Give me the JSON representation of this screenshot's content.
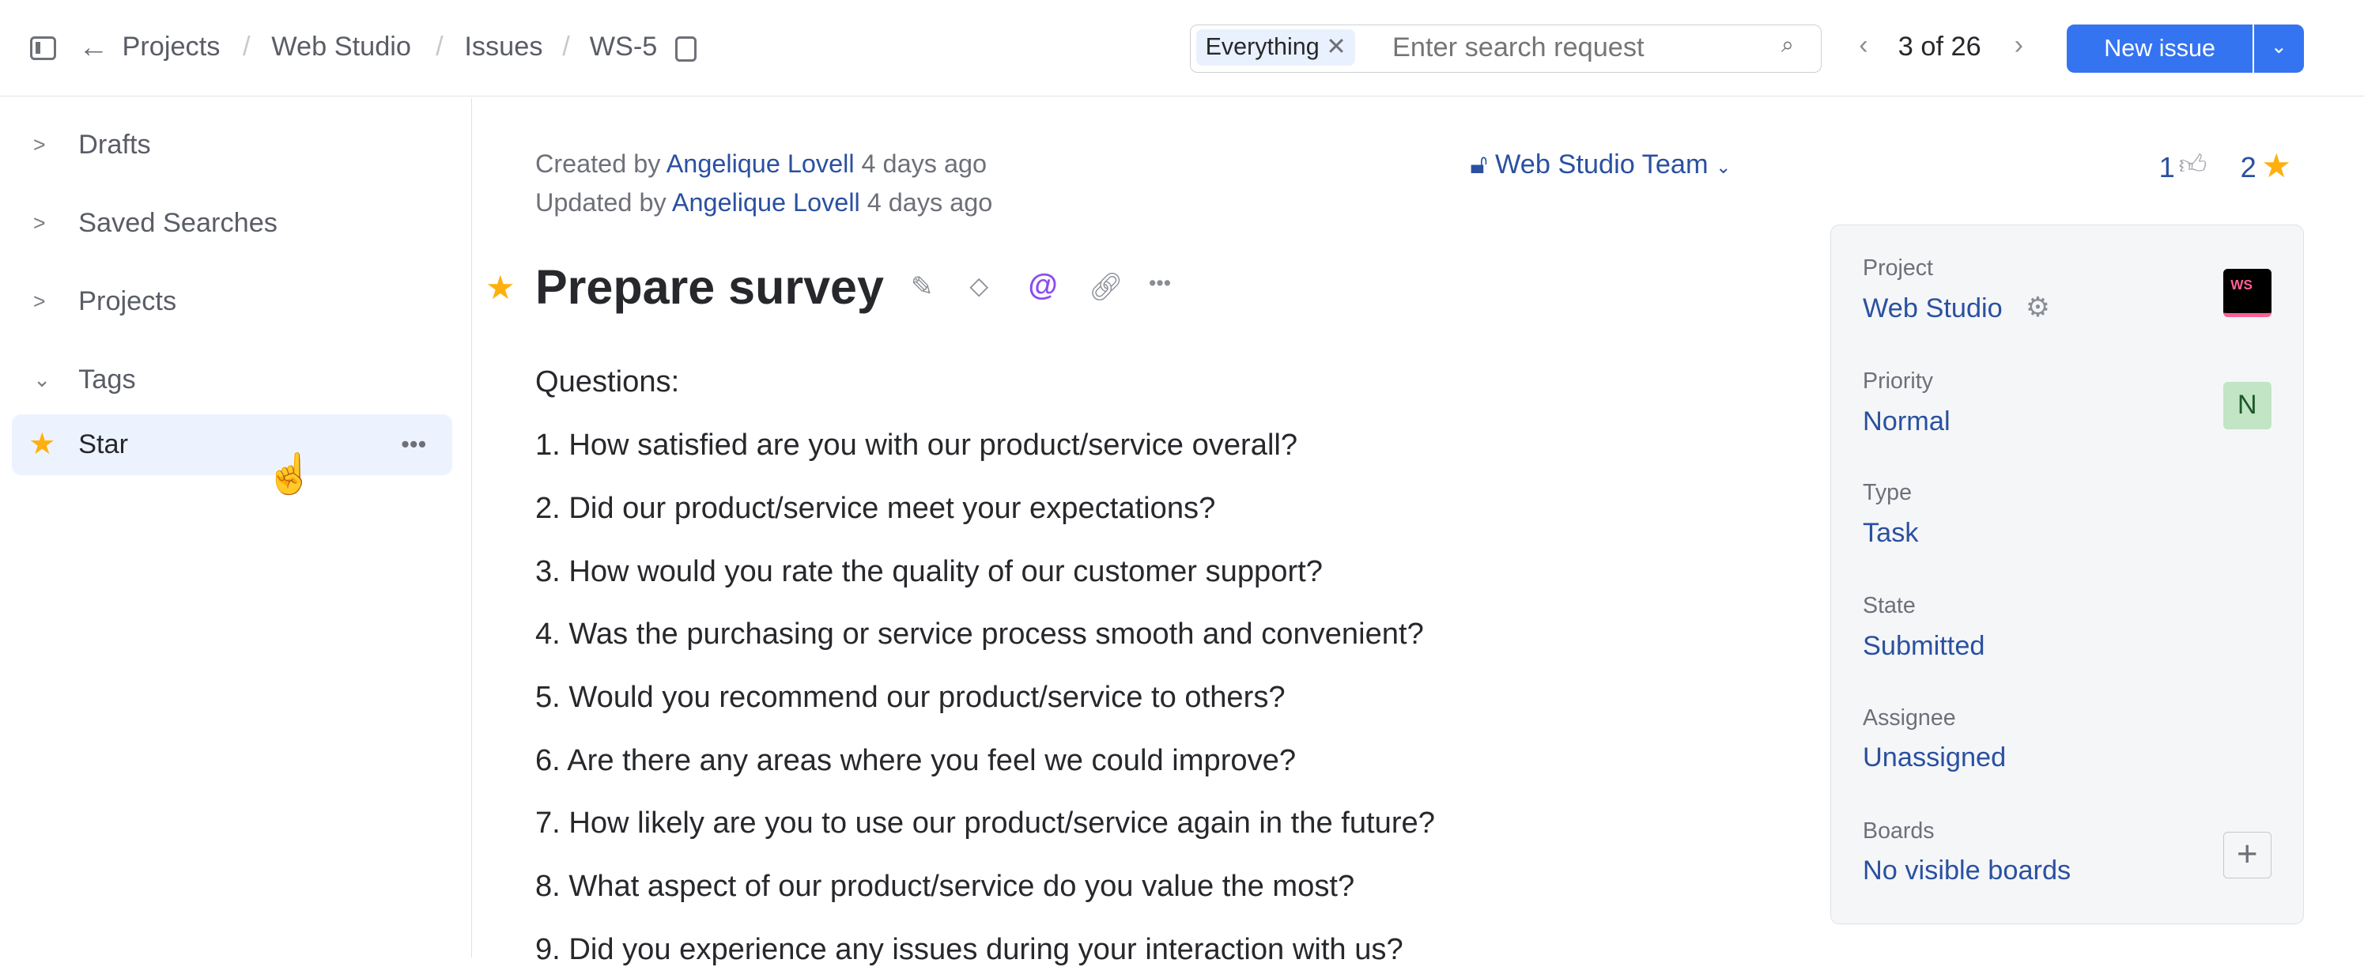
{
  "header": {
    "breadcrumb": [
      "Projects",
      "Web Studio",
      "Issues",
      "WS-5"
    ],
    "search": {
      "chip": "Everything",
      "placeholder": "Enter search request"
    },
    "pager": "3 of 26",
    "new_issue": "New issue"
  },
  "sidebar": {
    "items": [
      {
        "label": "Drafts"
      },
      {
        "label": "Saved Searches"
      },
      {
        "label": "Projects"
      },
      {
        "label": "Tags"
      }
    ],
    "tag": {
      "label": "Star"
    }
  },
  "issue": {
    "created_prefix": "Created by",
    "created_by": "Angelique Lovell",
    "created_when": "4 days ago",
    "updated_prefix": "Updated by",
    "updated_by": "Angelique Lovell",
    "updated_when": "4 days ago",
    "visibility": "Web Studio Team",
    "title": "Prepare survey",
    "body": [
      "Questions:",
      "1. How satisfied are you with our product/service overall?",
      "2. Did our product/service meet your expectations?",
      "3. How would you rate the quality of our customer support?",
      "4. Was the purchasing or service process smooth and convenient?",
      "5. Would you recommend our product/service to others?",
      "6. Are there any areas where you feel we could improve?",
      "7. How likely are you to use our product/service again in the future?",
      "8. What aspect of our product/service do you value the most?",
      "9. Did you experience any issues during your interaction with us?"
    ],
    "votes": "1",
    "stars": "2"
  },
  "fields": [
    {
      "label": "Project",
      "value": "Web Studio",
      "badge": "WS"
    },
    {
      "label": "Priority",
      "value": "Normal",
      "badge": "N"
    },
    {
      "label": "Type",
      "value": "Task"
    },
    {
      "label": "State",
      "value": "Submitted"
    },
    {
      "label": "Assignee",
      "value": "Unassigned"
    },
    {
      "label": "Boards",
      "value": "No visible boards"
    }
  ],
  "colors": {
    "accent": "#3574f0",
    "link": "#2a50a0",
    "star": "#ffaf0f",
    "priority_bg": "#c2e5c5"
  }
}
